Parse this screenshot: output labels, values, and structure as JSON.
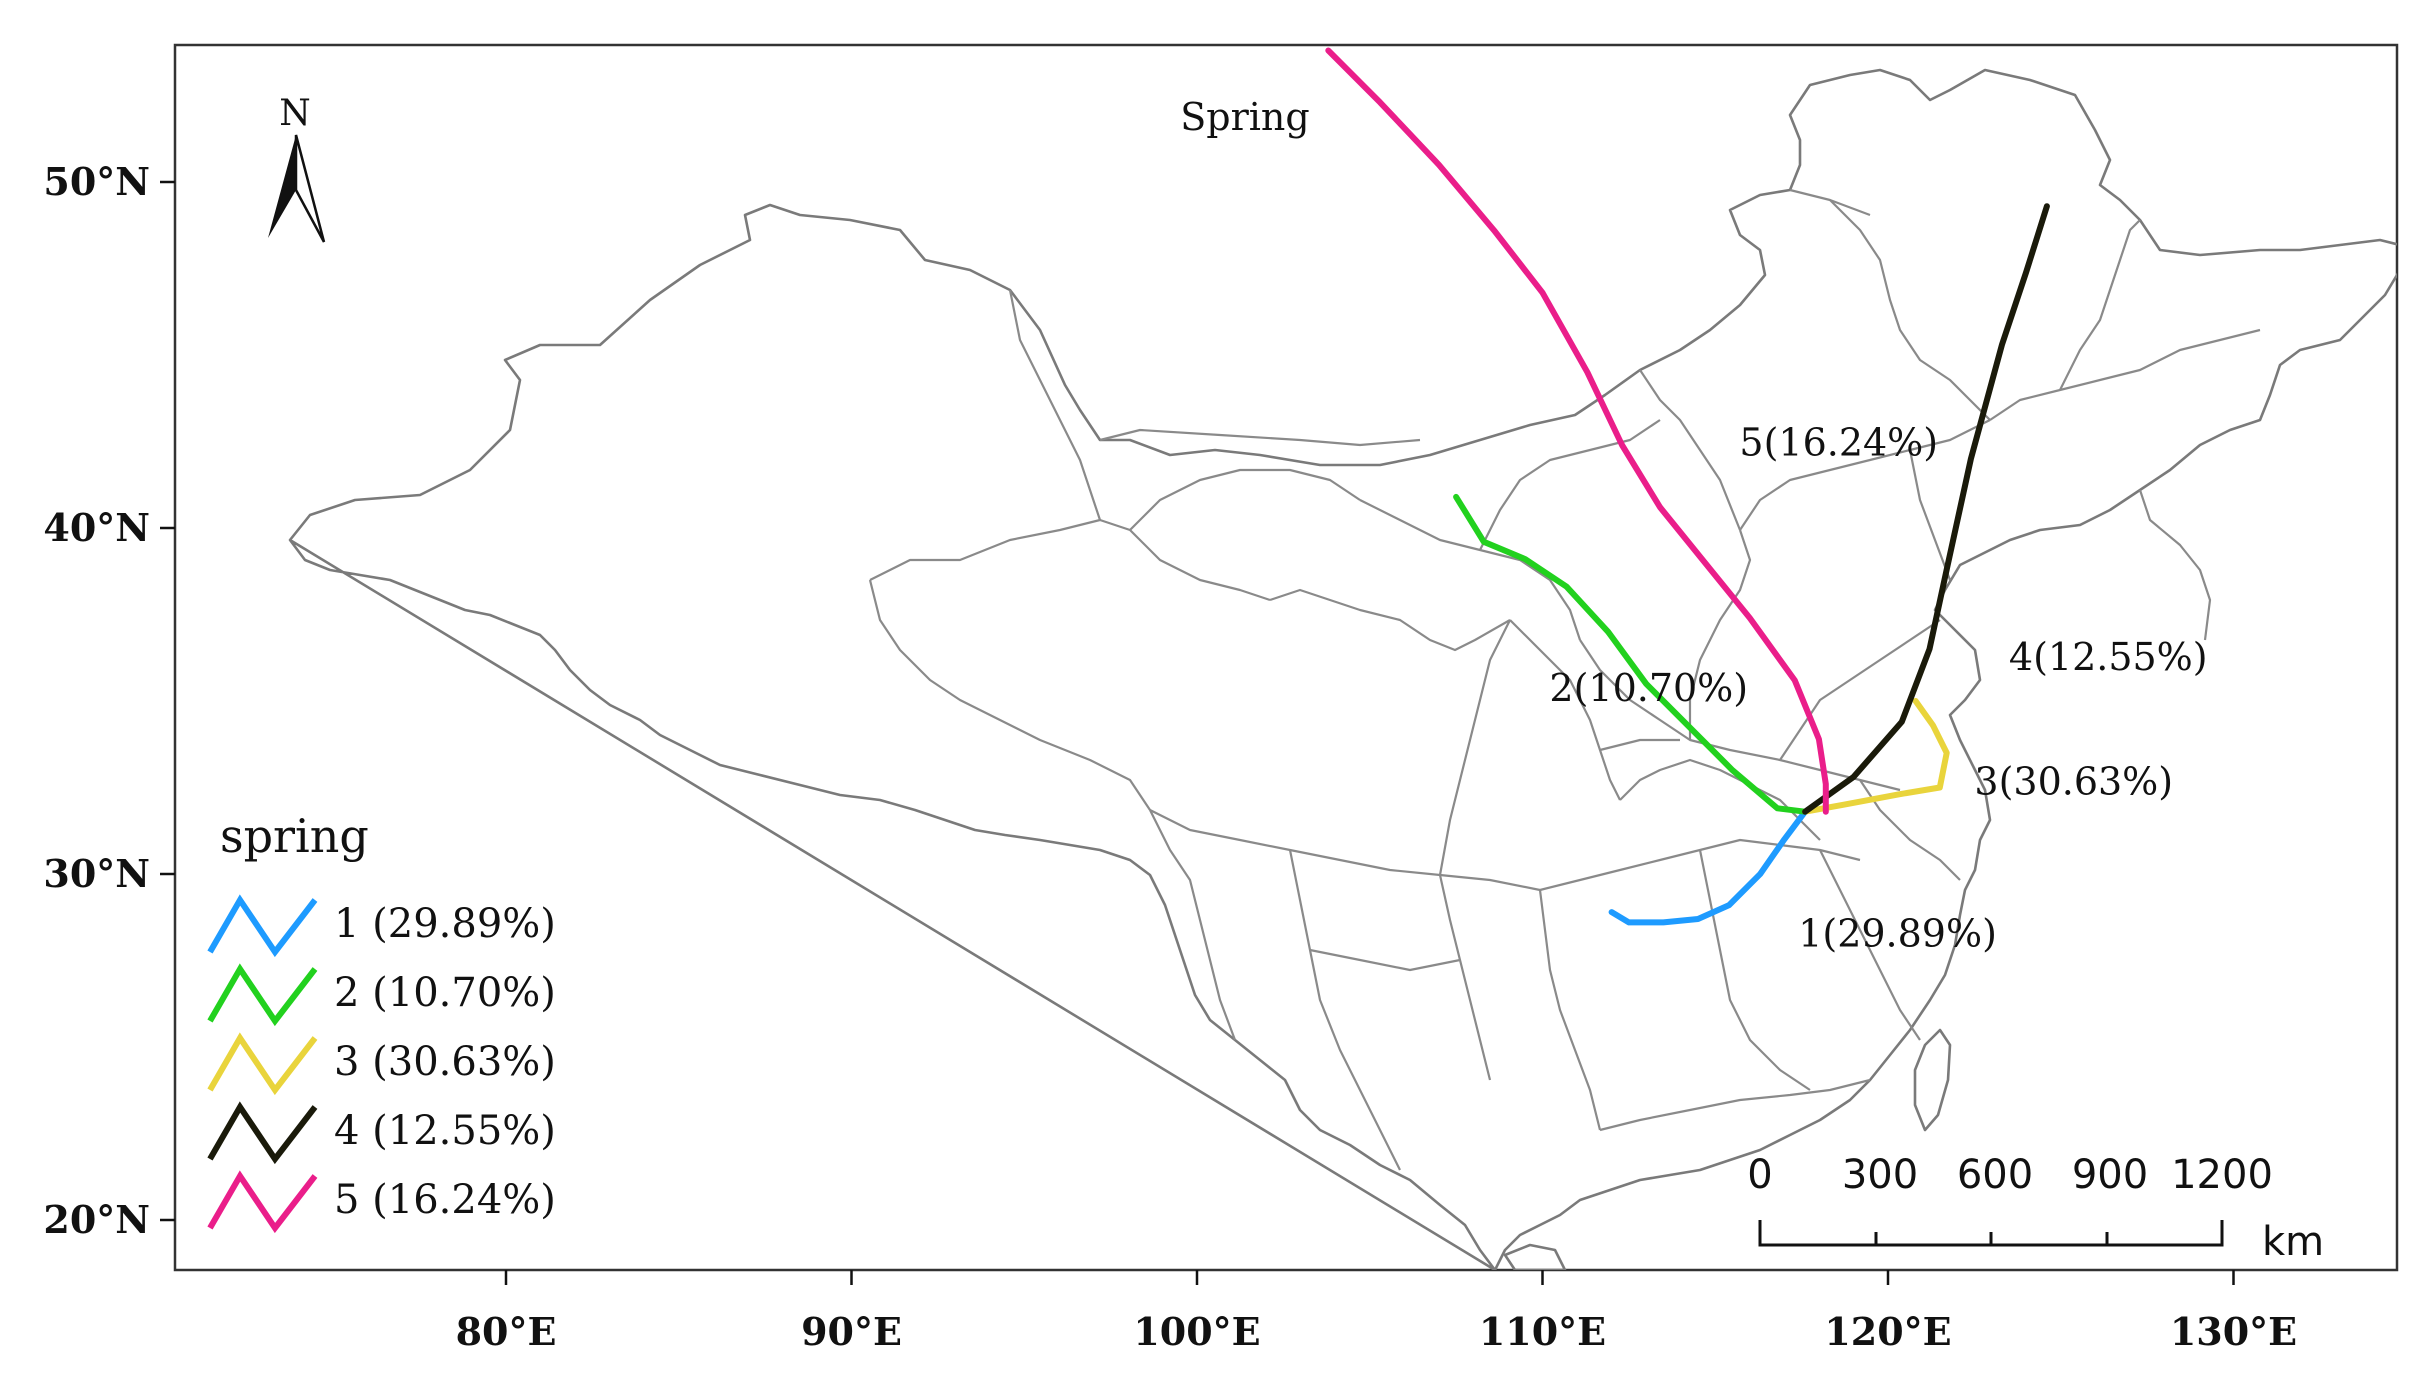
{
  "map": {
    "title": "Spring",
    "north_arrow_label": "N",
    "lat_labels": [
      {
        "value": 50,
        "text": "50°N"
      },
      {
        "value": 40,
        "text": "40°N"
      },
      {
        "value": 30,
        "text": "30°N"
      },
      {
        "value": 20,
        "text": "20°N"
      }
    ],
    "lon_labels": [
      {
        "value": 80,
        "text": "80°E"
      },
      {
        "value": 90,
        "text": "90°E"
      },
      {
        "value": 100,
        "text": "100°E"
      },
      {
        "value": 110,
        "text": "110°E"
      },
      {
        "value": 120,
        "text": "120°E"
      },
      {
        "value": 130,
        "text": "130°E"
      }
    ],
    "extent": {
      "lon": [
        70.5,
        134.3
      ],
      "lat": [
        18.6,
        53.8
      ]
    }
  },
  "legend": {
    "title": "spring",
    "items": [
      {
        "label": "1 (29.89%)",
        "color": "#1e9bff"
      },
      {
        "label": "2 (10.70%)",
        "color": "#22d11e"
      },
      {
        "label": "3 (30.63%)",
        "color": "#e9d43c"
      },
      {
        "label": "4 (12.55%)",
        "color": "#1a1a0a"
      },
      {
        "label": "5 (16.24%)",
        "color": "#ea1e8a"
      }
    ]
  },
  "trajectories": [
    {
      "id": "1",
      "label": "1(29.89%)",
      "color": "#1e9bff",
      "points": [
        [
          117.6,
          31.8
        ],
        [
          117.0,
          31.0
        ],
        [
          116.3,
          30.0
        ],
        [
          115.4,
          29.1
        ],
        [
          114.5,
          28.7
        ],
        [
          113.5,
          28.6
        ],
        [
          112.5,
          28.6
        ],
        [
          112.0,
          28.9
        ]
      ],
      "label_pos": [
        117.4,
        27.9
      ]
    },
    {
      "id": "2",
      "label": "2(10.70%)",
      "color": "#22d11e",
      "points": [
        [
          117.6,
          31.8
        ],
        [
          116.8,
          31.9
        ],
        [
          115.5,
          33.0
        ],
        [
          114.3,
          34.2
        ],
        [
          113.0,
          35.5
        ],
        [
          111.9,
          37.0
        ],
        [
          110.7,
          38.3
        ],
        [
          109.5,
          39.1
        ],
        [
          108.3,
          39.6
        ],
        [
          107.5,
          40.9
        ]
      ],
      "label_pos": [
        110.2,
        35.0
      ]
    },
    {
      "id": "3",
      "label": "3(30.63%)",
      "color": "#e9d43c",
      "points": [
        [
          117.6,
          31.8
        ],
        [
          118.7,
          32.0
        ],
        [
          120.3,
          32.3
        ],
        [
          121.5,
          32.5
        ],
        [
          121.7,
          33.5
        ],
        [
          121.3,
          34.3
        ],
        [
          120.8,
          35.0
        ]
      ],
      "label_pos": [
        122.5,
        32.3
      ]
    },
    {
      "id": "4",
      "label": "4(12.55%)",
      "color": "#1a1a0a",
      "points": [
        [
          117.6,
          31.8
        ],
        [
          119.0,
          32.8
        ],
        [
          120.4,
          34.4
        ],
        [
          121.2,
          36.5
        ],
        [
          121.7,
          38.8
        ],
        [
          122.4,
          42.0
        ],
        [
          123.3,
          45.3
        ],
        [
          124.0,
          47.4
        ],
        [
          124.6,
          49.3
        ]
      ],
      "label_pos": [
        123.5,
        35.9
      ]
    },
    {
      "id": "5",
      "label": "5(16.24%)",
      "color": "#ea1e8a",
      "points": [
        [
          118.2,
          31.8
        ],
        [
          118.2,
          32.6
        ],
        [
          118.0,
          33.9
        ],
        [
          117.3,
          35.6
        ],
        [
          116.0,
          37.4
        ],
        [
          114.7,
          39.0
        ],
        [
          113.4,
          40.6
        ],
        [
          112.3,
          42.4
        ],
        [
          111.3,
          44.5
        ],
        [
          110.0,
          46.8
        ],
        [
          108.6,
          48.6
        ],
        [
          107.0,
          50.5
        ],
        [
          105.3,
          52.3
        ],
        [
          103.8,
          53.8
        ]
      ],
      "label_pos": [
        115.7,
        42.1
      ]
    }
  ],
  "scale_bar": {
    "ticks": [
      "0",
      "300",
      "600",
      "900",
      "1200"
    ],
    "unit": "km"
  }
}
